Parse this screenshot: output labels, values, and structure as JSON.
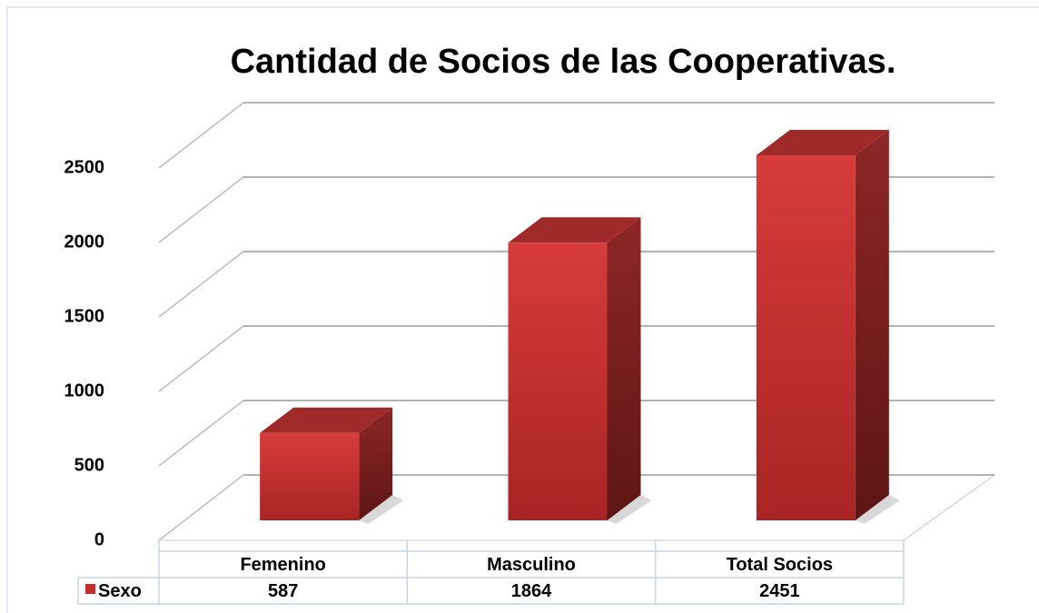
{
  "chart_data": {
    "type": "bar3d",
    "title": "Cantidad de Socios de las Cooperativas.",
    "categories": [
      "Femenino",
      "Masculino",
      "Total Socios"
    ],
    "series": [
      {
        "name": "Sexo",
        "color": "#c0302f",
        "values": [
          587,
          1864,
          2451
        ]
      }
    ],
    "ylim": [
      0,
      2500
    ],
    "yticks": [
      0,
      500,
      1000,
      1500,
      2000,
      2500
    ],
    "grid": true,
    "legend": "data-table"
  }
}
